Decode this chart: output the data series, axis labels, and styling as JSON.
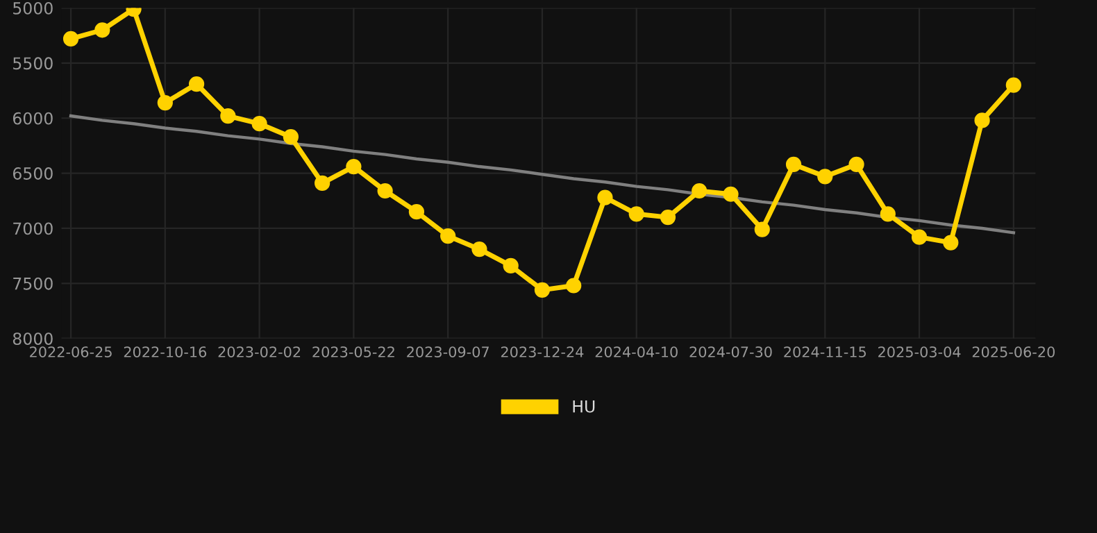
{
  "chart_data": {
    "type": "line",
    "categories": [
      "2022-06-25",
      null,
      null,
      "2022-10-16",
      null,
      null,
      "2023-02-02",
      null,
      null,
      "2023-05-22",
      null,
      null,
      "2023-09-07",
      null,
      null,
      "2023-12-24",
      null,
      null,
      "2024-04-10",
      null,
      null,
      "2024-07-30",
      null,
      null,
      "2024-11-15",
      null,
      null,
      "2025-03-04",
      null,
      null,
      "2025-06-20"
    ],
    "series": [
      {
        "name": "HU",
        "color": "#ffd200",
        "marker": "circle",
        "values": [
          5280,
          5200,
          5010,
          5860,
          5690,
          5980,
          6050,
          6170,
          6590,
          6440,
          6660,
          6850,
          7070,
          7190,
          7340,
          7560,
          7520,
          6720,
          6870,
          6900,
          6660,
          6690,
          7010,
          6420,
          6530,
          6420,
          6870,
          7080,
          7130,
          6020,
          5700
        ]
      },
      {
        "type": "line",
        "color": "#808080",
        "marker": "none",
        "values": [
          5980,
          6020,
          6050,
          6090,
          6120,
          6160,
          6190,
          6230,
          6260,
          6300,
          6330,
          6370,
          6400,
          6440,
          6470,
          6510,
          6550,
          6580,
          6620,
          6650,
          6690,
          6720,
          6760,
          6790,
          6830,
          6860,
          6900,
          6930,
          6970,
          7000,
          7040
        ]
      }
    ],
    "ylim": [
      8000,
      5000
    ],
    "yticks": [
      5000,
      5500,
      6000,
      6500,
      7000,
      7500,
      8000
    ],
    "grid": true,
    "legend": "bottom"
  }
}
